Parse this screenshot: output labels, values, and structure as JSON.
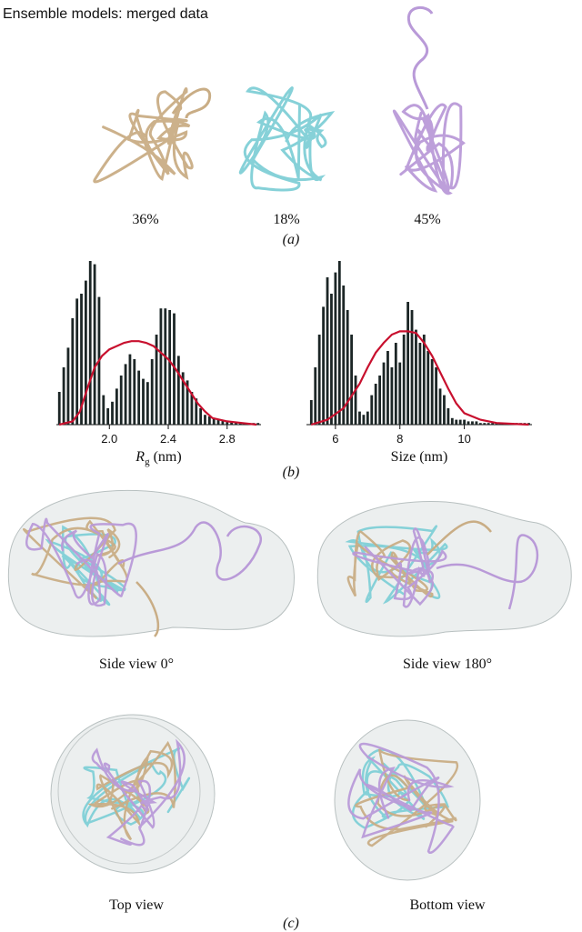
{
  "header": {
    "title": "Ensemble models: merged data"
  },
  "panel_a": {
    "models": [
      {
        "label": "36%"
      },
      {
        "label": "18%"
      },
      {
        "label": "45%"
      }
    ],
    "caption": "(a)"
  },
  "panel_b": {
    "caption": "(b)"
  },
  "chart_data": [
    {
      "type": "bar",
      "xlabel": {
        "symbol": "R",
        "subscript": "g",
        "unit": "(nm)"
      },
      "x": [
        1.66,
        1.69,
        1.72,
        1.75,
        1.78,
        1.81,
        1.84,
        1.87,
        1.9,
        1.93,
        1.96,
        1.99,
        2.02,
        2.05,
        2.08,
        2.11,
        2.14,
        2.17,
        2.2,
        2.23,
        2.26,
        2.29,
        2.32,
        2.35,
        2.38,
        2.41,
        2.44,
        2.47,
        2.5,
        2.53,
        2.56,
        2.59,
        2.62,
        2.65,
        2.68,
        2.71,
        2.74,
        2.77,
        2.8,
        2.83,
        2.86,
        2.89,
        2.92,
        2.95,
        2.98,
        3.01
      ],
      "values": [
        20,
        35,
        47,
        65,
        77,
        80,
        88,
        100,
        98,
        78,
        18,
        10,
        14,
        22,
        30,
        37,
        43,
        40,
        33,
        28,
        26,
        40,
        55,
        71,
        71,
        70,
        68,
        42,
        32,
        27,
        20,
        16,
        10,
        6,
        5,
        4,
        3,
        3,
        2,
        2,
        1,
        1,
        1,
        1,
        1,
        1
      ],
      "color": "#1c2626",
      "overlay": {
        "type": "line",
        "color": "#c8102e",
        "x": [
          1.66,
          1.75,
          1.8,
          1.85,
          1.9,
          1.95,
          2.0,
          2.05,
          2.1,
          2.15,
          2.2,
          2.25,
          2.3,
          2.35,
          2.4,
          2.45,
          2.5,
          2.55,
          2.6,
          2.65,
          2.7,
          2.8,
          2.9,
          3.0
        ],
        "values": [
          0,
          2,
          8,
          22,
          35,
          42,
          46,
          48,
          50,
          51,
          51,
          50,
          48,
          44,
          40,
          34,
          27,
          20,
          13,
          8,
          4,
          2,
          1,
          0
        ]
      },
      "xlim": [
        1.64,
        3.03
      ],
      "xticks": [
        {
          "value": 2,
          "label": "2.0"
        },
        {
          "value": 2.4,
          "label": "2.4"
        },
        {
          "value": 2.8,
          "label": "2.8"
        }
      ],
      "ylim": [
        0,
        100
      ]
    },
    {
      "type": "bar",
      "xlabel": {
        "unit": "Size (nm)"
      },
      "x": [
        5.25,
        5.375,
        5.5,
        5.625,
        5.75,
        5.875,
        6.0,
        6.125,
        6.25,
        6.375,
        6.5,
        6.625,
        6.75,
        6.875,
        7.0,
        7.125,
        7.25,
        7.375,
        7.5,
        7.625,
        7.75,
        7.875,
        8.0,
        8.125,
        8.25,
        8.375,
        8.5,
        8.625,
        8.75,
        8.875,
        9.0,
        9.125,
        9.25,
        9.375,
        9.5,
        9.625,
        9.75,
        9.875,
        10.0,
        10.125,
        10.25,
        10.375,
        10.5,
        10.625,
        10.75,
        10.875,
        11.0,
        11.125,
        11.25,
        11.375,
        11.5,
        11.625,
        11.75,
        11.875,
        12.0
      ],
      "values": [
        15,
        35,
        55,
        72,
        90,
        80,
        93,
        100,
        85,
        70,
        55,
        30,
        8,
        6,
        8,
        18,
        25,
        30,
        38,
        45,
        35,
        50,
        38,
        55,
        75,
        70,
        58,
        50,
        55,
        45,
        40,
        35,
        22,
        18,
        10,
        4,
        3,
        3,
        3,
        2,
        2,
        2,
        1,
        1,
        1,
        1,
        1,
        1,
        1,
        1,
        1,
        1,
        1,
        1,
        1
      ],
      "color": "#1c2626",
      "overlay": {
        "type": "line",
        "color": "#c8102e",
        "x": [
          5.25,
          5.75,
          6.25,
          6.75,
          7.0,
          7.25,
          7.5,
          7.75,
          8.0,
          8.25,
          8.5,
          8.75,
          9.0,
          9.25,
          9.5,
          9.75,
          10.0,
          10.5,
          11.0,
          11.5,
          12.0
        ],
        "values": [
          0,
          3,
          10,
          25,
          35,
          44,
          50,
          55,
          57,
          57,
          56,
          50,
          42,
          32,
          22,
          13,
          7,
          3,
          1,
          0.5,
          0
        ]
      },
      "xlim": [
        5.1,
        12.1
      ],
      "xticks": [
        6,
        8,
        10
      ],
      "ylim": [
        0,
        100
      ]
    }
  ],
  "panel_c": {
    "views": [
      {
        "label": "Side view 0°"
      },
      {
        "label": "Side view 180°"
      },
      {
        "label": "Top view"
      },
      {
        "label": "Bottom view"
      }
    ],
    "caption": "(c)"
  }
}
